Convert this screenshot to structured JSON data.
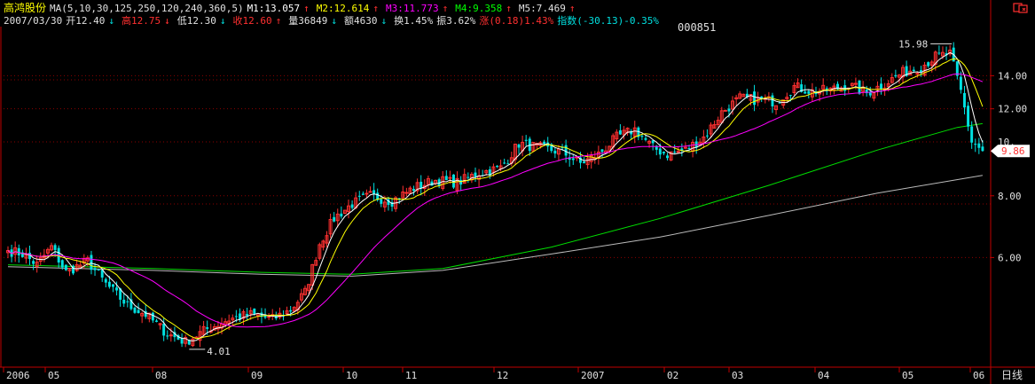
{
  "header": {
    "name": "高鸿股份",
    "ma_label": "MA(5,10,30,125,250,120,240,360,5)",
    "ma_values": [
      {
        "label": "M1:13.057",
        "arrow": "↑",
        "color": "#ffffff"
      },
      {
        "label": "M2:12.614",
        "arrow": "↑",
        "color": "#ffff00"
      },
      {
        "label": "M3:11.773",
        "arrow": "↑",
        "color": "#ff00ff"
      },
      {
        "label": "M4:9.358",
        "arrow": "↑",
        "color": "#00ff00"
      },
      {
        "label": "M5:7.469",
        "arrow": "↑",
        "color": "#e0e0e0"
      }
    ],
    "date": "2007/03/30",
    "open": "开12.40",
    "high": "高12.75",
    "low": "低12.30",
    "close": "收12.60",
    "volume": "量36849",
    "amount": "额4630",
    "turnover": "换1.45%",
    "amplitude": "振3.62%",
    "change": "涨(0.18)1.43%",
    "index": "指数(-30.13)-0.35%"
  },
  "stock_code": "000851",
  "corner_icon": "restore-icon",
  "period_label": "日线",
  "price_tag": "9.86",
  "price_tag_ghost": "10.",
  "colors": {
    "up": "#ff3030",
    "down": "#00e0e0",
    "grid": "#8b0000",
    "axis": "#c00000",
    "ma_white": "#ffffff",
    "ma_yellow": "#ffff00",
    "ma_magenta": "#ff00ff",
    "ma_green": "#00dd00",
    "ma_gray": "#bbbbbb"
  },
  "chart_data": {
    "type": "candlestick",
    "scale": "log",
    "ylim": [
      3.6,
      17.6
    ],
    "y_ticks": [
      "6.00",
      "8.00",
      "12.00",
      "14.00"
    ],
    "x_ticks": [
      "2006",
      "05",
      "08",
      "09",
      "10",
      "11",
      "12",
      "2007",
      "02",
      "03",
      "04",
      "05",
      "06"
    ],
    "annotations": [
      {
        "text": "15.98",
        "x": "2007-05-28",
        "y": 15.98
      },
      {
        "text": "4.01",
        "x": "2006-08-08",
        "y": 4.01
      }
    ],
    "last_price": 9.86,
    "waypoints": [
      {
        "x": 0,
        "p": 6.2
      },
      {
        "x": 4,
        "p": 6.1
      },
      {
        "x": 8,
        "p": 5.8
      },
      {
        "x": 12,
        "p": 6.3
      },
      {
        "x": 16,
        "p": 5.6
      },
      {
        "x": 22,
        "p": 5.9
      },
      {
        "x": 27,
        "p": 5.3
      },
      {
        "x": 33,
        "p": 4.8
      },
      {
        "x": 38,
        "p": 4.6
      },
      {
        "x": 44,
        "p": 4.2
      },
      {
        "x": 49,
        "p": 4.05
      },
      {
        "x": 55,
        "p": 4.3
      },
      {
        "x": 61,
        "p": 4.5
      },
      {
        "x": 67,
        "p": 4.6
      },
      {
        "x": 73,
        "p": 4.5
      },
      {
        "x": 78,
        "p": 4.7
      },
      {
        "x": 82,
        "p": 5.1
      },
      {
        "x": 86,
        "p": 6.4
      },
      {
        "x": 90,
        "p": 7.2
      },
      {
        "x": 95,
        "p": 7.7
      },
      {
        "x": 100,
        "p": 8.0
      },
      {
        "x": 106,
        "p": 7.8
      },
      {
        "x": 112,
        "p": 8.3
      },
      {
        "x": 118,
        "p": 8.6
      },
      {
        "x": 124,
        "p": 8.5
      },
      {
        "x": 130,
        "p": 8.9
      },
      {
        "x": 136,
        "p": 9.1
      },
      {
        "x": 141,
        "p": 10.2
      },
      {
        "x": 147,
        "p": 10.0
      },
      {
        "x": 153,
        "p": 9.8
      },
      {
        "x": 158,
        "p": 9.3
      },
      {
        "x": 163,
        "p": 9.7
      },
      {
        "x": 168,
        "p": 10.5
      },
      {
        "x": 173,
        "p": 10.9
      },
      {
        "x": 178,
        "p": 10.0
      },
      {
        "x": 182,
        "p": 9.7
      },
      {
        "x": 187,
        "p": 9.9
      },
      {
        "x": 192,
        "p": 10.5
      },
      {
        "x": 197,
        "p": 11.8
      },
      {
        "x": 202,
        "p": 12.6
      },
      {
        "x": 207,
        "p": 12.5
      },
      {
        "x": 212,
        "p": 12.4
      },
      {
        "x": 217,
        "p": 13.3
      },
      {
        "x": 222,
        "p": 13.0
      },
      {
        "x": 227,
        "p": 13.1
      },
      {
        "x": 232,
        "p": 13.4
      },
      {
        "x": 237,
        "p": 12.9
      },
      {
        "x": 242,
        "p": 13.5
      },
      {
        "x": 247,
        "p": 14.2
      },
      {
        "x": 252,
        "p": 14.6
      },
      {
        "x": 256,
        "p": 15.3
      },
      {
        "x": 260,
        "p": 15.5
      },
      {
        "x": 263,
        "p": 13.0
      },
      {
        "x": 266,
        "p": 10.3
      },
      {
        "x": 269,
        "p": 9.86
      }
    ],
    "long_ma": {
      "green": [
        {
          "x": 0,
          "p": 5.8
        },
        {
          "x": 40,
          "p": 5.7
        },
        {
          "x": 70,
          "p": 5.6
        },
        {
          "x": 95,
          "p": 5.55
        },
        {
          "x": 120,
          "p": 5.7
        },
        {
          "x": 150,
          "p": 6.3
        },
        {
          "x": 180,
          "p": 7.2
        },
        {
          "x": 210,
          "p": 8.4
        },
        {
          "x": 240,
          "p": 9.9
        },
        {
          "x": 262,
          "p": 11.0
        },
        {
          "x": 269,
          "p": 11.2
        }
      ],
      "gray": [
        {
          "x": 0,
          "p": 5.75
        },
        {
          "x": 40,
          "p": 5.65
        },
        {
          "x": 70,
          "p": 5.55
        },
        {
          "x": 95,
          "p": 5.5
        },
        {
          "x": 120,
          "p": 5.65
        },
        {
          "x": 150,
          "p": 6.1
        },
        {
          "x": 180,
          "p": 6.6
        },
        {
          "x": 210,
          "p": 7.3
        },
        {
          "x": 240,
          "p": 8.1
        },
        {
          "x": 269,
          "p": 8.8
        }
      ]
    }
  }
}
